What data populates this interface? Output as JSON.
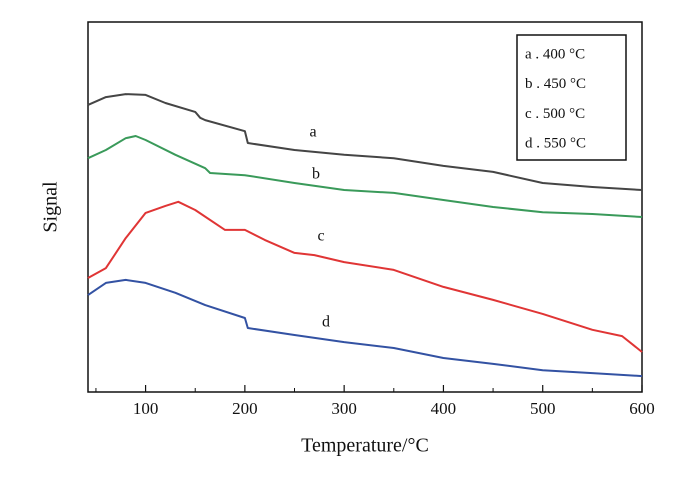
{
  "chart_data": {
    "type": "line",
    "xlabel": "Temperature/°C",
    "ylabel": "Signal",
    "xlim": [
      42,
      600
    ],
    "ylim": [
      0,
      100
    ],
    "xticks": [
      100,
      200,
      300,
      400,
      500,
      600
    ],
    "xminor": [
      50,
      150,
      250,
      350,
      450,
      550
    ],
    "legend": "upper right",
    "series": [
      {
        "name": "a . 400 °C",
        "color": "#454545",
        "x": [
          42,
          60,
          80,
          100,
          120,
          150,
          155,
          160,
          200,
          203,
          250,
          300,
          350,
          400,
          450,
          500,
          550,
          600
        ],
        "values": [
          77.6,
          79.7,
          80.5,
          80.3,
          78.1,
          75.7,
          74.1,
          73.5,
          70.5,
          67.3,
          65.4,
          64.1,
          63.2,
          61.1,
          59.5,
          56.5,
          55.4,
          54.6
        ]
      },
      {
        "name": "b . 450 °C",
        "color": "#3a9a5a",
        "x": [
          42,
          60,
          80,
          90,
          100,
          130,
          160,
          165,
          200,
          250,
          300,
          350,
          400,
          450,
          500,
          550,
          600
        ],
        "values": [
          63.2,
          65.4,
          68.6,
          69.2,
          68.1,
          64.1,
          60.5,
          59.2,
          58.6,
          56.5,
          54.6,
          53.8,
          51.9,
          50.0,
          48.6,
          48.1,
          47.3
        ]
      },
      {
        "name": "c . 500 °C",
        "color": "#e03535",
        "x": [
          42,
          60,
          80,
          100,
          120,
          133,
          150,
          180,
          200,
          220,
          250,
          270,
          300,
          350,
          400,
          450,
          500,
          550,
          580,
          600
        ],
        "values": [
          30.8,
          33.5,
          41.6,
          48.4,
          50.3,
          51.4,
          49.2,
          43.8,
          43.8,
          41.1,
          37.6,
          37.0,
          35.1,
          33.0,
          28.4,
          24.9,
          21.1,
          16.8,
          15.1,
          10.8
        ]
      },
      {
        "name": "d . 550 °C",
        "color": "#3352a3",
        "x": [
          42,
          60,
          80,
          100,
          130,
          160,
          200,
          203,
          250,
          300,
          350,
          400,
          450,
          500,
          550,
          600
        ],
        "values": [
          26.2,
          29.5,
          30.3,
          29.5,
          26.8,
          23.5,
          20.0,
          17.3,
          15.4,
          13.5,
          11.9,
          9.2,
          7.6,
          5.9,
          5.1,
          4.3
        ]
      }
    ],
    "annotations": [
      "a",
      "b",
      "c",
      "d"
    ]
  }
}
